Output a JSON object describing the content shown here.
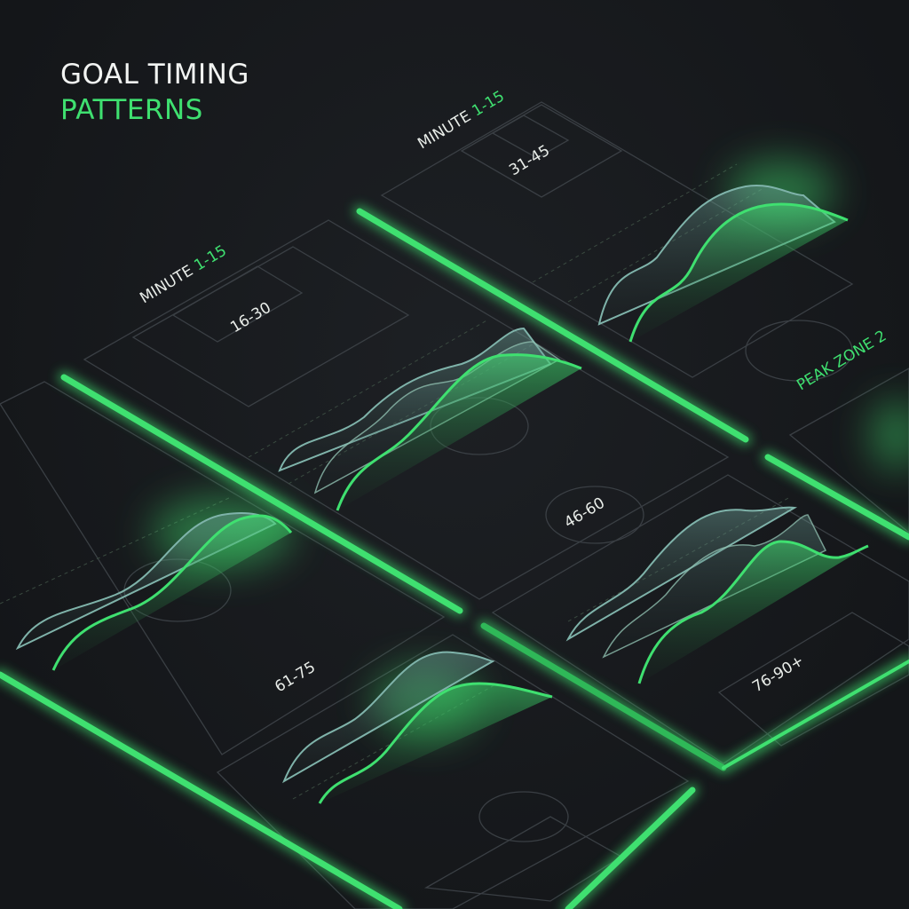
{
  "title": {
    "line1": "GOAL TIMING",
    "line2": "PATTERNS"
  },
  "labels": {
    "minute_prefix": "MINUTE",
    "minute_range": "1-15",
    "period_31_45": "31-45",
    "period_16_30": "16-30",
    "period_46_60": "46-60",
    "period_61_75": "61-75",
    "period_76_90": "76-90+",
    "peak_zone": "PEAK ZONE 2"
  },
  "colors": {
    "background": "#16181b",
    "accent": "#3fe070",
    "secondary_wave": "#6fa39a",
    "pitch_line": "#3a3f44"
  }
}
